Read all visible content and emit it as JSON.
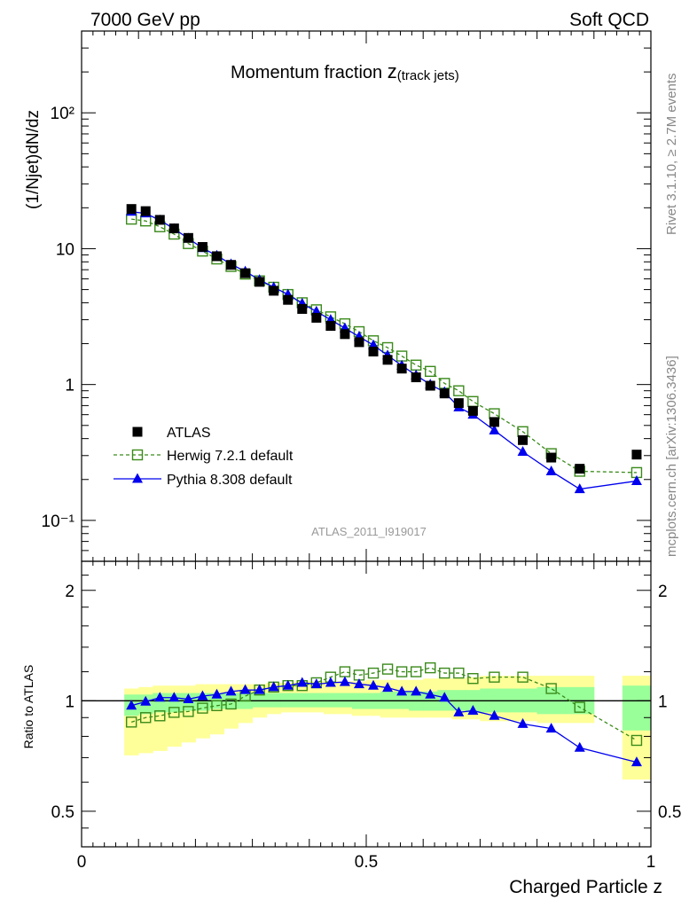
{
  "header": {
    "left": "7000 GeV pp",
    "right": "Soft QCD"
  },
  "side": {
    "rivet": "Rivet 3.1.10, ≥ 2.7M events",
    "mcplots": "mcplots.cern.ch [arXiv:1306.3436]"
  },
  "analysis_id": "ATLAS_2011_I919017",
  "chart_data": [
    {
      "type": "scatter",
      "title": "Momentum fraction z(track jets)",
      "title_main": "Momentum fraction ",
      "title_z": "z",
      "title_sub": "(track jets)",
      "ylabel": "(1/Njet)dN/dz",
      "xlabel": "",
      "xlim": [
        0,
        1
      ],
      "ylim": [
        0.05,
        400
      ],
      "yscale": "log",
      "ytick_labels": [
        "10⁻¹",
        "1",
        "10",
        "10²"
      ],
      "legend_position": "bottom-left",
      "x": [
        0.0875,
        0.1125,
        0.1375,
        0.1625,
        0.1875,
        0.2125,
        0.2375,
        0.2625,
        0.2875,
        0.3125,
        0.3375,
        0.3625,
        0.3875,
        0.4125,
        0.4375,
        0.4625,
        0.4875,
        0.5125,
        0.5375,
        0.5625,
        0.5875,
        0.6125,
        0.6375,
        0.6625,
        0.6875,
        0.725,
        0.775,
        0.825,
        0.875,
        0.975
      ],
      "series": [
        {
          "name": "ATLAS",
          "color": "#000000",
          "marker": "filled-square",
          "values": [
            19.6,
            18.9,
            16.3,
            14.1,
            12.0,
            10.3,
            8.8,
            7.6,
            6.6,
            5.7,
            4.9,
            4.2,
            3.6,
            3.1,
            2.7,
            2.35,
            2.05,
            1.75,
            1.52,
            1.31,
            1.13,
            0.98,
            0.86,
            0.73,
            0.64,
            0.53,
            0.39,
            0.29,
            0.24,
            0.305
          ]
        },
        {
          "name": "Herwig 7.2.1 default",
          "color": "#3a8a1a",
          "marker": "open-square",
          "line": "dashed",
          "values": [
            16.5,
            16.0,
            14.5,
            12.8,
            10.9,
            9.6,
            8.4,
            7.4,
            6.5,
            5.8,
            5.2,
            4.6,
            4.0,
            3.55,
            3.15,
            2.8,
            2.45,
            2.1,
            1.87,
            1.62,
            1.39,
            1.25,
            1.02,
            0.9,
            0.75,
            0.61,
            0.45,
            0.31,
            0.23,
            0.225
          ]
        },
        {
          "name": "Pythia 8.308 default",
          "color": "#0000ee",
          "marker": "filled-triangle",
          "line": "solid",
          "values": [
            18.7,
            18.2,
            16.2,
            14.0,
            11.9,
            10.1,
            8.9,
            7.7,
            6.8,
            5.9,
            5.2,
            4.6,
            3.95,
            3.45,
            3.0,
            2.6,
            2.25,
            1.95,
            1.64,
            1.38,
            1.17,
            1.0,
            0.88,
            0.68,
            0.6,
            0.46,
            0.32,
            0.23,
            0.17,
            0.195
          ]
        }
      ]
    },
    {
      "type": "scatter",
      "title": "",
      "xlabel": "Charged Particle z",
      "ylabel": "Ratio to ATLAS",
      "xlim": [
        0,
        1
      ],
      "ylim": [
        0.4,
        2.4
      ],
      "yscale": "log",
      "ytick_labels": [
        "0.5",
        "1",
        "2"
      ],
      "xtick_labels": [
        "0",
        "0.5",
        "1"
      ],
      "x": [
        0.0875,
        0.1125,
        0.1375,
        0.1625,
        0.1875,
        0.2125,
        0.2375,
        0.2625,
        0.2875,
        0.3125,
        0.3375,
        0.3625,
        0.3875,
        0.4125,
        0.4375,
        0.4625,
        0.4875,
        0.5125,
        0.5375,
        0.5625,
        0.5875,
        0.6125,
        0.6375,
        0.6625,
        0.6875,
        0.725,
        0.775,
        0.825,
        0.875,
        0.975
      ],
      "bin_edges": [
        0.075,
        0.1,
        0.125,
        0.15,
        0.175,
        0.2,
        0.225,
        0.25,
        0.275,
        0.3,
        0.325,
        0.35,
        0.375,
        0.4,
        0.425,
        0.45,
        0.475,
        0.5,
        0.525,
        0.55,
        0.575,
        0.6,
        0.625,
        0.65,
        0.675,
        0.7,
        0.75,
        0.8,
        0.85,
        0.9,
        0.95,
        1.0
      ],
      "uncertainty_bands": {
        "total": {
          "color": "#ffff99",
          "lo": [
            0.71,
            0.72,
            0.73,
            0.75,
            0.77,
            0.79,
            0.81,
            0.84,
            0.87,
            0.9,
            0.92,
            0.93,
            0.93,
            0.93,
            0.92,
            0.92,
            0.91,
            0.91,
            0.9,
            0.9,
            0.9,
            0.9,
            0.9,
            0.89,
            0.89,
            0.88,
            0.88,
            0.87,
            0.87,
            null,
            0.61
          ],
          "hi": [
            1.08,
            1.09,
            1.1,
            1.1,
            1.1,
            1.11,
            1.11,
            1.11,
            1.11,
            1.11,
            1.12,
            1.12,
            1.13,
            1.13,
            1.13,
            1.13,
            1.13,
            1.14,
            1.14,
            1.14,
            1.14,
            1.15,
            1.15,
            1.15,
            1.16,
            1.17,
            1.17,
            1.17,
            1.17,
            null,
            1.17
          ]
        },
        "stat": {
          "color": "#99ff99",
          "lo": [
            0.91,
            0.92,
            0.93,
            0.93,
            0.94,
            0.94,
            0.95,
            0.95,
            0.95,
            0.96,
            0.96,
            0.96,
            0.96,
            0.96,
            0.96,
            0.96,
            0.95,
            0.95,
            0.95,
            0.95,
            0.94,
            0.94,
            0.94,
            0.94,
            0.93,
            0.93,
            0.93,
            0.92,
            0.92,
            null,
            0.83
          ],
          "hi": [
            1.04,
            1.04,
            1.05,
            1.05,
            1.05,
            1.05,
            1.05,
            1.05,
            1.05,
            1.05,
            1.05,
            1.05,
            1.05,
            1.05,
            1.05,
            1.05,
            1.05,
            1.05,
            1.06,
            1.06,
            1.06,
            1.06,
            1.07,
            1.07,
            1.07,
            1.08,
            1.08,
            1.09,
            1.09,
            null,
            1.1
          ]
        }
      },
      "series": [
        {
          "name": "Herwig 7.2.1 default",
          "color": "#3a8a1a",
          "marker": "open-square",
          "line": "dashed",
          "values": [
            0.875,
            0.9,
            0.91,
            0.93,
            0.935,
            0.955,
            0.97,
            0.98,
            1.03,
            1.07,
            1.09,
            1.1,
            1.1,
            1.12,
            1.16,
            1.2,
            1.175,
            1.19,
            1.22,
            1.2,
            1.2,
            1.23,
            1.19,
            1.19,
            1.15,
            1.16,
            1.16,
            1.08,
            0.96,
            0.78
          ]
        },
        {
          "name": "Pythia 8.308 default",
          "color": "#0000ee",
          "marker": "filled-triangle",
          "line": "solid",
          "values": [
            0.97,
            0.995,
            1.02,
            1.02,
            1.01,
            1.03,
            1.04,
            1.06,
            1.07,
            1.07,
            1.09,
            1.1,
            1.12,
            1.11,
            1.12,
            1.125,
            1.11,
            1.1,
            1.085,
            1.06,
            1.06,
            1.04,
            1.02,
            0.93,
            0.94,
            0.91,
            0.865,
            0.84,
            0.745,
            0.68
          ]
        }
      ]
    }
  ]
}
